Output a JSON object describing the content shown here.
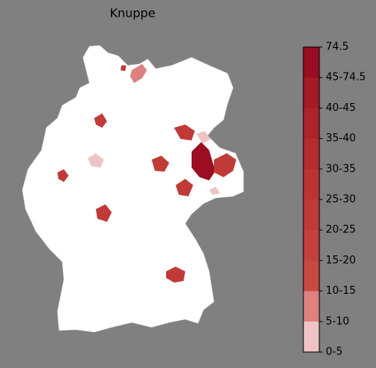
{
  "title": "Knuppe",
  "legend": {
    "labels": [
      "74.5",
      "45-74.5",
      "40-45",
      "35-40",
      "30-35",
      "25-30",
      "20-25",
      "15-20",
      "10-15",
      "5-10",
      "0-5"
    ],
    "colors": [
      "#9b0d22",
      "#a61a26",
      "#ae2329",
      "#b52b2e",
      "#bb3333",
      "#c03a38",
      "#c4403d",
      "#c84842",
      "#dc8080",
      "#f0c4c4",
      "#ffffff"
    ]
  }
}
